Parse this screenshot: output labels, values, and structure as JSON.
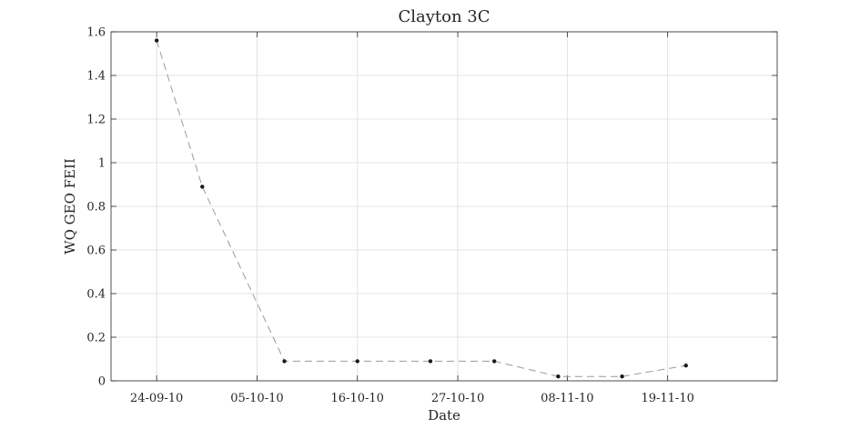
{
  "chart_data": {
    "type": "line",
    "title": "Clayton 3C",
    "xlabel": "Date",
    "ylabel": "WQ GEO FEII",
    "ylim": [
      0,
      1.6
    ],
    "yticks": [
      0,
      0.2,
      0.4,
      0.6,
      0.8,
      1,
      1.2,
      1.4,
      1.6
    ],
    "ytick_labels": [
      "0",
      "0.2",
      "0.4",
      "0.6",
      "0.8",
      "1",
      "1.2",
      "1.4",
      "1.6"
    ],
    "xlim": [
      "2010-09-19",
      "2010-12-01"
    ],
    "xticks": [
      "2010-09-24",
      "2010-10-05",
      "2010-10-16",
      "2010-10-27",
      "2010-11-08",
      "2010-11-19"
    ],
    "xtick_labels": [
      "24-09-10",
      "05-10-10",
      "16-10-10",
      "27-10-10",
      "08-11-10",
      "19-11-10"
    ],
    "grid": true,
    "series": [
      {
        "x": [
          "2010-09-24",
          "2010-09-29",
          "2010-10-08",
          "2010-10-16",
          "2010-10-24",
          "2010-10-31",
          "2010-11-07",
          "2010-11-14",
          "2010-11-21"
        ],
        "y": [
          1.56,
          0.89,
          0.09,
          0.09,
          0.09,
          0.09,
          0.02,
          0.02,
          0.07
        ],
        "line_style": "dashed",
        "line_color": "#9a9a9a",
        "marker_color": "#1a1a1a"
      }
    ]
  }
}
